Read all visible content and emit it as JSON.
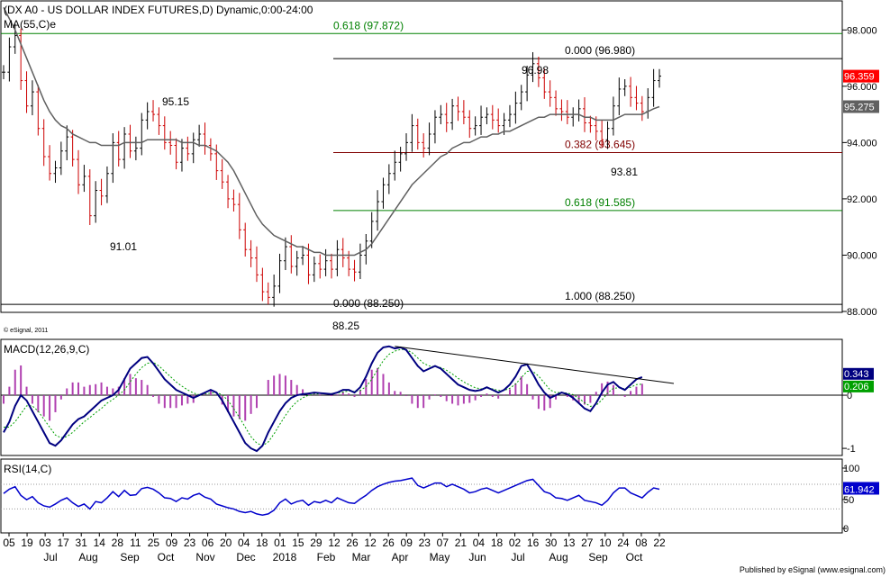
{
  "chart_data": [
    {
      "type": "candlestick",
      "title": "(DX A0 - US DOLLAR INDEX FUTURES,D) Dynamic,0:00-24:00",
      "subtitle": "MA(55,C)e",
      "watermark": "© eSignal, 2011",
      "ylim": [
        88.0,
        99.0
      ],
      "y_ticks": [
        "98.000",
        "96.000",
        "94.000",
        "92.000",
        "90.000",
        "88.000"
      ],
      "last_price_label": "96.359",
      "ma_label": "95.275",
      "fib_levels": [
        {
          "label": "0.618 (97.872)",
          "value": 97.872,
          "color": "#008000"
        },
        {
          "label": "0.000 (96.980)",
          "value": 96.98,
          "color": "#000000"
        },
        {
          "label": "0.382 (93.645)",
          "value": 93.645,
          "color": "#800000"
        },
        {
          "label": "0.618 (91.585)",
          "value": 91.585,
          "color": "#008000"
        },
        {
          "label": "1.000 (88.250)",
          "value": 88.25,
          "color": "#000000"
        }
      ],
      "annotations": [
        "96.98",
        "95.15",
        "91.01",
        "93.81",
        "0.000 (88.250)",
        "88.25"
      ],
      "series": [
        {
          "name": "DX A0",
          "close": [
            96.5,
            97.4,
            97.8,
            96.2,
            95.3,
            95.8,
            94.5,
            93.5,
            92.9,
            93.1,
            93.7,
            94.2,
            93.4,
            92.5,
            92.8,
            91.4,
            92.3,
            92.1,
            92.9,
            94.0,
            93.4,
            94.3,
            93.7,
            93.8,
            94.8,
            95.1,
            95.0,
            94.6,
            94.0,
            93.9,
            93.3,
            93.8,
            93.6,
            94.1,
            94.3,
            93.9,
            93.6,
            93.0,
            92.6,
            92.0,
            91.8,
            90.9,
            90.2,
            89.9,
            89.3,
            88.7,
            88.5,
            88.9,
            89.8,
            90.3,
            89.6,
            89.9,
            90.0,
            89.3,
            89.7,
            89.5,
            89.8,
            89.5,
            90.2,
            89.9,
            89.5,
            89.4,
            90.0,
            90.5,
            91.2,
            91.9,
            92.5,
            92.9,
            93.3,
            93.6,
            94.0,
            94.6,
            94.0,
            93.8,
            94.3,
            94.9,
            95.0,
            94.7,
            95.3,
            95.1,
            94.9,
            94.5,
            94.6,
            94.9,
            95.0,
            94.8,
            94.6,
            94.8,
            95.0,
            95.4,
            95.8,
            96.4,
            96.8,
            96.3,
            95.8,
            95.6,
            95.2,
            95.1,
            94.9,
            95.0,
            95.2,
            94.7,
            94.6,
            94.4,
            94.1,
            94.5,
            95.3,
            95.9,
            96.0,
            95.6,
            95.4,
            95.1,
            95.6,
            96.2,
            96.36
          ]
        },
        {
          "name": "MA(55,C)e",
          "values": [
            98.8,
            98.4,
            98.0,
            97.5,
            97.0,
            96.5,
            96.0,
            95.5,
            95.1,
            94.8,
            94.6,
            94.5,
            94.3,
            94.2,
            94.1,
            94.0,
            94.0,
            93.9,
            93.9,
            93.9,
            93.9,
            94.0,
            94.0,
            94.0,
            94.0,
            94.1,
            94.1,
            94.1,
            94.1,
            94.1,
            94.1,
            94.0,
            94.0,
            94.0,
            93.9,
            93.9,
            93.8,
            93.7,
            93.5,
            93.3,
            93.0,
            92.6,
            92.2,
            91.8,
            91.4,
            91.1,
            90.9,
            90.7,
            90.6,
            90.5,
            90.4,
            90.3,
            90.3,
            90.2,
            90.1,
            90.1,
            90.0,
            90.0,
            90.0,
            90.0,
            90.0,
            90.0,
            90.1,
            90.2,
            90.4,
            90.7,
            91.0,
            91.3,
            91.6,
            91.9,
            92.2,
            92.5,
            92.7,
            92.9,
            93.1,
            93.3,
            93.5,
            93.6,
            93.8,
            93.9,
            94.0,
            94.0,
            94.1,
            94.2,
            94.2,
            94.3,
            94.3,
            94.4,
            94.4,
            94.5,
            94.6,
            94.7,
            94.8,
            94.9,
            94.9,
            95.0,
            95.0,
            95.0,
            95.0,
            95.0,
            95.0,
            94.9,
            94.9,
            94.8,
            94.8,
            94.8,
            94.8,
            94.9,
            95.0,
            95.0,
            95.0,
            95.0,
            95.1,
            95.2,
            95.275
          ]
        }
      ]
    },
    {
      "type": "line",
      "title": "MACD(12,26,9,C)",
      "ylim": [
        -1.1,
        1.0
      ],
      "y_ticks": [
        "0",
        "-1"
      ],
      "macd_label": "0.343",
      "signal_label": "0.206",
      "hist_label": "",
      "series": [
        {
          "name": "MACD",
          "values": [
            -0.7,
            -0.5,
            -0.2,
            0.0,
            -0.1,
            -0.3,
            -0.5,
            -0.7,
            -0.9,
            -0.95,
            -0.85,
            -0.7,
            -0.55,
            -0.45,
            -0.4,
            -0.3,
            -0.2,
            -0.1,
            -0.05,
            0.0,
            0.1,
            0.3,
            0.5,
            0.6,
            0.7,
            0.72,
            0.6,
            0.45,
            0.3,
            0.2,
            0.1,
            0.05,
            0.0,
            -0.05,
            0.0,
            0.05,
            0.1,
            0.05,
            -0.1,
            -0.3,
            -0.5,
            -0.7,
            -0.9,
            -1.0,
            -1.05,
            -0.95,
            -0.7,
            -0.5,
            -0.3,
            -0.15,
            -0.05,
            0.0,
            0.02,
            0.03,
            0.05,
            0.04,
            0.03,
            0.02,
            0.05,
            0.1,
            0.1,
            0.05,
            0.15,
            0.35,
            0.6,
            0.8,
            0.9,
            0.92,
            0.88,
            0.9,
            0.85,
            0.7,
            0.55,
            0.45,
            0.5,
            0.55,
            0.5,
            0.4,
            0.3,
            0.2,
            0.15,
            0.1,
            0.08,
            0.1,
            0.15,
            0.1,
            0.05,
            0.1,
            0.2,
            0.35,
            0.55,
            0.58,
            0.4,
            0.2,
            0.05,
            -0.05,
            0.0,
            0.05,
            0.02,
            -0.05,
            -0.15,
            -0.25,
            -0.3,
            -0.15,
            0.05,
            0.2,
            0.25,
            0.15,
            0.1,
            0.2,
            0.3,
            0.34
          ]
        },
        {
          "name": "Signal",
          "values": [
            -0.6,
            -0.6,
            -0.5,
            -0.35,
            -0.2,
            -0.2,
            -0.3,
            -0.45,
            -0.6,
            -0.75,
            -0.8,
            -0.78,
            -0.7,
            -0.6,
            -0.5,
            -0.42,
            -0.33,
            -0.25,
            -0.15,
            -0.08,
            0.0,
            0.1,
            0.25,
            0.4,
            0.52,
            0.6,
            0.62,
            0.55,
            0.45,
            0.35,
            0.25,
            0.17,
            0.1,
            0.04,
            0.01,
            0.02,
            0.04,
            0.05,
            0.01,
            -0.1,
            -0.25,
            -0.42,
            -0.6,
            -0.78,
            -0.9,
            -0.95,
            -0.88,
            -0.73,
            -0.55,
            -0.38,
            -0.23,
            -0.12,
            -0.05,
            0.0,
            0.02,
            0.03,
            0.03,
            0.03,
            0.04,
            0.06,
            0.08,
            0.07,
            0.09,
            0.16,
            0.3,
            0.48,
            0.65,
            0.77,
            0.83,
            0.86,
            0.86,
            0.8,
            0.7,
            0.6,
            0.55,
            0.54,
            0.52,
            0.47,
            0.4,
            0.32,
            0.25,
            0.19,
            0.14,
            0.12,
            0.13,
            0.12,
            0.09,
            0.09,
            0.13,
            0.21,
            0.33,
            0.45,
            0.45,
            0.36,
            0.23,
            0.1,
            0.05,
            0.05,
            0.04,
            0.01,
            -0.06,
            -0.14,
            -0.21,
            -0.19,
            -0.09,
            0.04,
            0.13,
            0.14,
            0.12,
            0.15,
            0.2,
            0.206
          ]
        }
      ]
    },
    {
      "type": "line",
      "title": "RSI(14,C)",
      "ylim": [
        0,
        100
      ],
      "y_ticks": [
        "100",
        "50",
        "0"
      ],
      "rsi_label": "61.942",
      "series": [
        {
          "name": "RSI",
          "values": [
            55,
            62,
            66,
            52,
            45,
            50,
            40,
            35,
            33,
            38,
            44,
            48,
            40,
            34,
            38,
            30,
            42,
            40,
            48,
            58,
            50,
            60,
            52,
            53,
            63,
            65,
            62,
            56,
            48,
            47,
            42,
            48,
            46,
            52,
            55,
            49,
            46,
            38,
            35,
            32,
            30,
            26,
            24,
            26,
            22,
            20,
            22,
            28,
            40,
            46,
            38,
            42,
            44,
            36,
            42,
            40,
            44,
            40,
            48,
            44,
            40,
            39,
            46,
            52,
            60,
            66,
            70,
            73,
            75,
            76,
            78,
            80,
            68,
            64,
            68,
            72,
            72,
            66,
            70,
            66,
            62,
            56,
            58,
            62,
            64,
            60,
            56,
            60,
            64,
            68,
            72,
            76,
            78,
            68,
            58,
            55,
            48,
            47,
            44,
            48,
            52,
            44,
            42,
            40,
            36,
            44,
            56,
            64,
            64,
            56,
            52,
            48,
            57,
            64,
            61.942
          ]
        }
      ]
    }
  ],
  "x_axis": {
    "day_ticks": [
      "05",
      "19",
      "03",
      "17",
      "31",
      "14",
      "28",
      "11",
      "25",
      "09",
      "23",
      "06",
      "20",
      "04",
      "18",
      "01",
      "15",
      "29",
      "12",
      "26",
      "12",
      "26",
      "09",
      "23",
      "07",
      "21",
      "04",
      "18",
      "02",
      "16",
      "30",
      "13",
      "27",
      "10",
      "24",
      "08",
      "22"
    ],
    "month_labels": [
      "Jul",
      "Aug",
      "Sep",
      "Oct",
      "Nov",
      "Dec",
      "2018",
      "Feb",
      "Mar",
      "Apr",
      "May",
      "Jun",
      "Jul",
      "Aug",
      "Sep",
      "Oct"
    ]
  },
  "footer": "Published by eSignal (www.esignal.com)",
  "colors": {
    "bull": "#000000",
    "bear": "#cc0000",
    "ma": "#606060",
    "macd": "#000080",
    "signal": "#00a000",
    "hist": "#b040b0",
    "rsi": "#0000cc",
    "price_box": "#ff0000",
    "ma_box": "#606060",
    "macd_box": "#000080",
    "signal_box": "#00a000",
    "rsi_box": "#0000cc"
  }
}
